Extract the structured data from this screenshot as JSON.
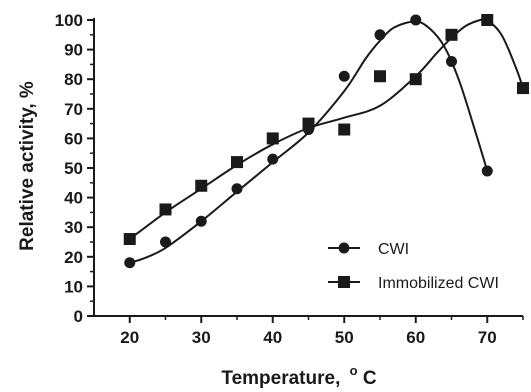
{
  "chart_data": {
    "type": "scatter",
    "xlabel": "Temperature,",
    "xlabel_unit_sup": "o",
    "xlabel_unit": "C",
    "ylabel": "Relative activity, %",
    "xlim": [
      15,
      75
    ],
    "ylim": [
      0,
      100
    ],
    "x_ticks": [
      20,
      30,
      40,
      50,
      60,
      70
    ],
    "y_ticks": [
      0,
      10,
      20,
      30,
      40,
      50,
      60,
      70,
      80,
      90,
      100
    ],
    "grid": false,
    "legend_position": "bottom-right",
    "series": [
      {
        "name": "CWI",
        "marker": "circle",
        "color": "#1a1a1a",
        "x": [
          20,
          25,
          30,
          35,
          40,
          45,
          50,
          55,
          60,
          65,
          70
        ],
        "y": [
          18,
          25,
          32,
          43,
          53,
          63,
          81,
          95,
          100,
          86,
          49
        ],
        "curve_x": [
          20,
          22,
          25,
          30,
          35,
          40,
          45,
          50,
          53,
          55,
          57,
          60,
          62,
          64,
          66,
          68,
          70
        ],
        "curve_y": [
          18,
          19.5,
          23,
          32,
          42,
          52,
          62,
          76,
          87,
          93,
          97.5,
          99.5,
          97,
          91,
          80,
          65,
          49
        ]
      },
      {
        "name": "Immobilized CWI",
        "marker": "square",
        "color": "#1a1a1a",
        "x": [
          20,
          25,
          30,
          35,
          40,
          45,
          50,
          55,
          60,
          65,
          70,
          75
        ],
        "y": [
          26,
          36,
          44,
          52,
          60,
          65,
          63,
          81,
          80,
          95,
          100,
          77
        ],
        "curve_x": [
          20,
          25,
          30,
          35,
          40,
          45,
          50,
          55,
          60,
          63,
          65,
          67,
          69,
          70,
          72,
          74,
          75
        ],
        "curve_y": [
          26,
          35,
          43,
          51,
          58,
          63.5,
          67,
          71,
          81,
          89,
          94,
          98,
          100,
          100,
          95,
          84,
          77
        ]
      }
    ]
  }
}
